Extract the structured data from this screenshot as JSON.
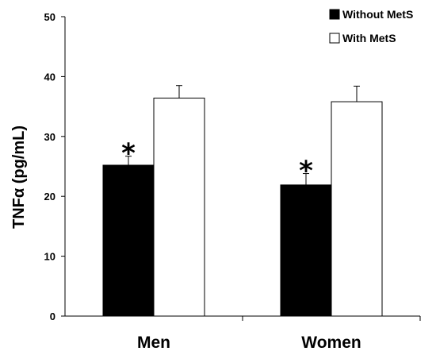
{
  "chart_data": {
    "type": "bar",
    "categories": [
      "Men",
      "Women"
    ],
    "series": [
      {
        "name": "Without MetS",
        "values": [
          25.2,
          21.9
        ],
        "errors": [
          1.5,
          1.9
        ],
        "color": "#000000"
      },
      {
        "name": "With MetS",
        "values": [
          36.4,
          35.8
        ],
        "errors": [
          2.1,
          2.6
        ],
        "color": "#ffffff"
      }
    ],
    "ylabel": "TNFα (pg/mL)",
    "ylim": [
      0,
      50
    ],
    "yticks": [
      "0",
      "10",
      "20",
      "30",
      "40",
      "50"
    ],
    "annotations": [
      {
        "category": "Men",
        "series": "Without MetS",
        "text": "*"
      },
      {
        "category": "Women",
        "series": "Without MetS",
        "text": "*"
      }
    ],
    "legend_position": "top-right",
    "grid": false
  }
}
